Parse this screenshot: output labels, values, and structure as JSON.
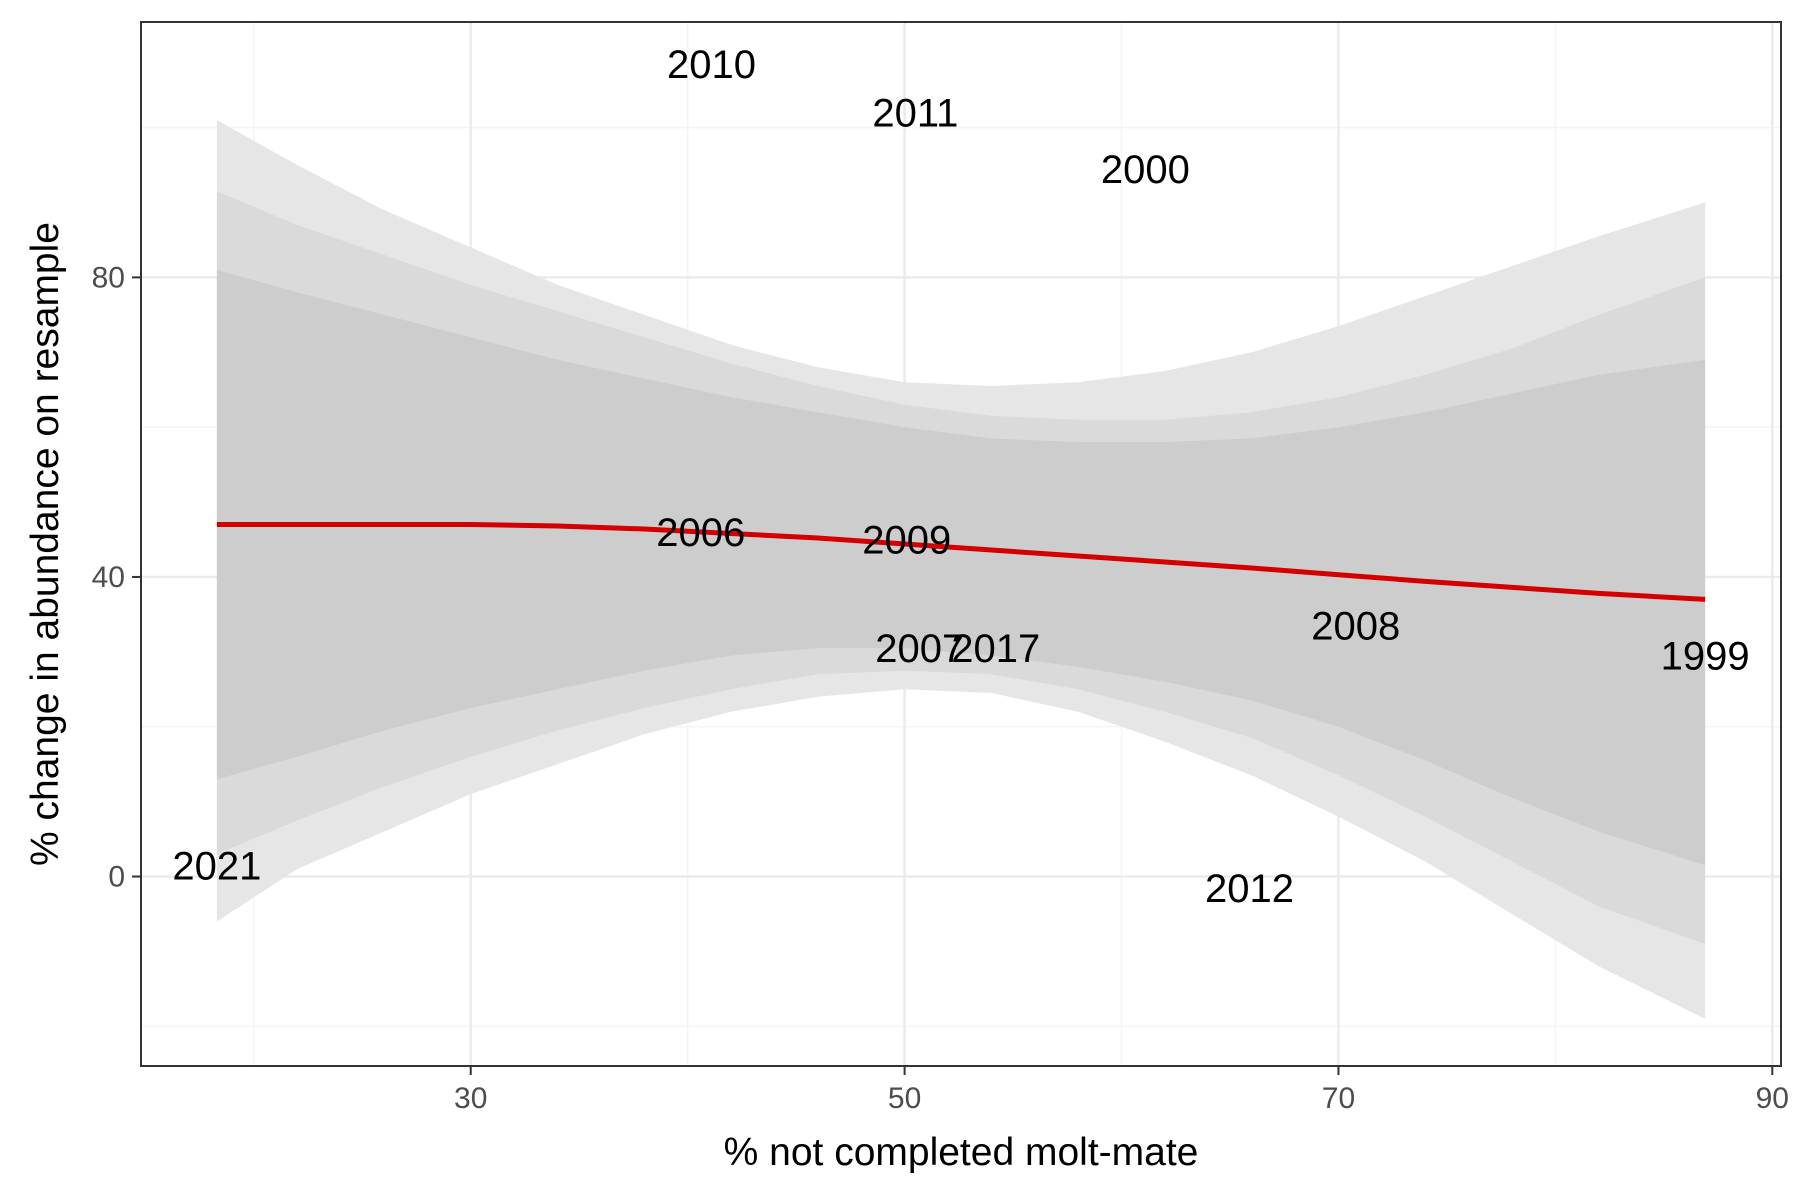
{
  "chart_data": {
    "type": "scatter",
    "title": "",
    "xlabel": "% not completed molt-mate",
    "ylabel": "% change in abundance on resample",
    "xlim": [
      14.8,
      90.4
    ],
    "ylim": [
      -25.3,
      114.1
    ],
    "x_ticks": [
      30,
      50,
      70,
      90
    ],
    "y_ticks": [
      0,
      40,
      80
    ],
    "x_minor": [
      20,
      40,
      60,
      80
    ],
    "y_minor": [
      -20,
      20,
      60,
      100
    ],
    "grid": true,
    "legend": "none",
    "colors": {
      "fit_line": "#d40000",
      "band_outer": "#e6e6e6",
      "band_middle": "#dadada",
      "band_inner": "#cdcdcd",
      "grid_major": "#ebebeb",
      "grid_minor": "#f4f4f4",
      "axis_text": "#4d4d4d",
      "panel_border": "#333333"
    },
    "points": [
      {
        "label": "1999",
        "x": 86.9,
        "y": 29.5
      },
      {
        "label": "2000",
        "x": 61.1,
        "y": 94.5
      },
      {
        "label": "2006",
        "x": 40.6,
        "y": 46.0
      },
      {
        "label": "2007",
        "x": 50.7,
        "y": 30.5
      },
      {
        "label": "2008",
        "x": 70.8,
        "y": 33.5
      },
      {
        "label": "2009",
        "x": 50.1,
        "y": 45.0
      },
      {
        "label": "2010",
        "x": 41.1,
        "y": 108.5
      },
      {
        "label": "2011",
        "x": 50.5,
        "y": 102.0
      },
      {
        "label": "2012",
        "x": 65.9,
        "y": -1.5
      },
      {
        "label": "2017",
        "x": 54.2,
        "y": 30.5
      },
      {
        "label": "2021",
        "x": 18.3,
        "y": 1.5
      }
    ],
    "fit_line": {
      "x": [
        18.3,
        22,
        26,
        30,
        34,
        38,
        42,
        46,
        50,
        54,
        58,
        62,
        66,
        70,
        74,
        78,
        82,
        86.9
      ],
      "y": [
        47.0,
        47.0,
        47.0,
        47.0,
        46.8,
        46.4,
        45.8,
        45.2,
        44.4,
        43.6,
        42.8,
        42.0,
        41.2,
        40.3,
        39.4,
        38.6,
        37.8,
        37.0
      ]
    },
    "bands": [
      {
        "name": "outer",
        "x": [
          18.3,
          22,
          26,
          30,
          34,
          38,
          42,
          46,
          50,
          54,
          58,
          62,
          66,
          70,
          74,
          78,
          82,
          86.9
        ],
        "upper": [
          101.0,
          95.0,
          89.0,
          84.0,
          79.0,
          75.0,
          71.0,
          68.0,
          66.0,
          65.5,
          66.0,
          67.5,
          70.0,
          73.5,
          77.5,
          81.5,
          85.5,
          90.0
        ],
        "lower": [
          -6.0,
          1.0,
          6.0,
          11.0,
          15.0,
          19.0,
          22.0,
          24.0,
          25.0,
          24.5,
          22.0,
          18.0,
          13.5,
          8.0,
          2.0,
          -5.0,
          -12.0,
          -19.0
        ]
      },
      {
        "name": "middle",
        "x": [
          18.3,
          22,
          26,
          30,
          34,
          38,
          42,
          46,
          50,
          54,
          58,
          62,
          66,
          70,
          74,
          78,
          82,
          86.9
        ],
        "upper": [
          91.5,
          87.0,
          83.0,
          79.0,
          75.5,
          72.0,
          68.5,
          65.5,
          63.0,
          61.5,
          61.0,
          61.0,
          62.0,
          64.0,
          67.0,
          70.5,
          75.0,
          80.0
        ],
        "lower": [
          3.0,
          7.5,
          12.0,
          16.0,
          19.5,
          22.5,
          25.0,
          27.0,
          27.5,
          27.0,
          25.0,
          22.0,
          18.5,
          13.5,
          8.0,
          2.0,
          -4.0,
          -9.0
        ]
      },
      {
        "name": "inner",
        "x": [
          18.3,
          22,
          26,
          30,
          34,
          38,
          42,
          46,
          50,
          54,
          58,
          62,
          66,
          70,
          74,
          78,
          82,
          86.9
        ],
        "upper": [
          81.0,
          78.0,
          75.0,
          72.0,
          69.0,
          66.5,
          64.0,
          62.0,
          60.0,
          58.5,
          58.0,
          58.0,
          58.5,
          60.0,
          62.0,
          64.5,
          67.0,
          69.0
        ],
        "lower": [
          13.0,
          16.0,
          19.5,
          22.5,
          25.0,
          27.5,
          29.5,
          30.5,
          30.5,
          29.5,
          28.0,
          26.0,
          23.5,
          20.0,
          15.5,
          10.5,
          6.0,
          1.5
        ]
      }
    ]
  }
}
